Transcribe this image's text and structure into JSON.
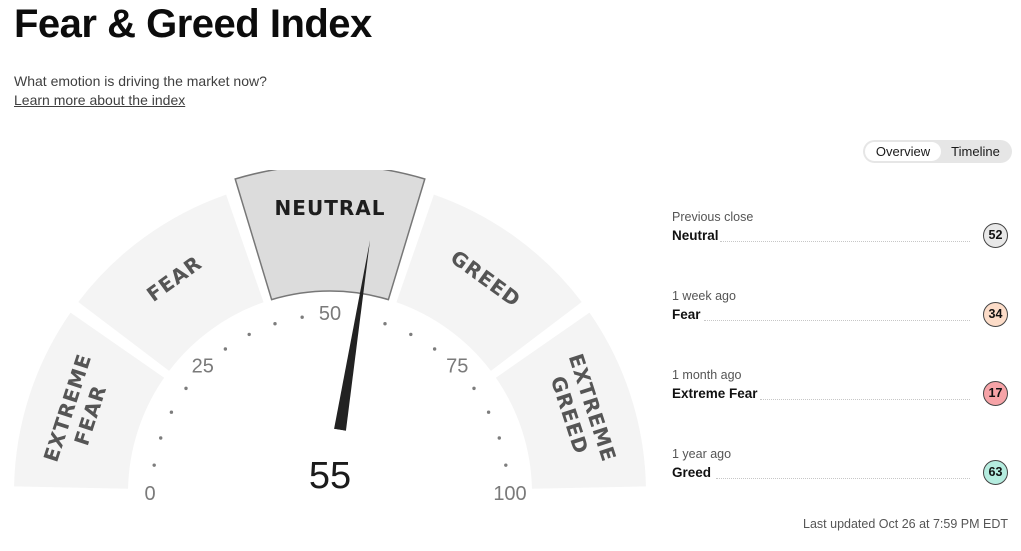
{
  "page": {
    "title": "Fear & Greed Index",
    "subtitle": "What emotion is driving the market now?",
    "learn_more": "Learn more about the index"
  },
  "view_toggle": {
    "options": [
      "Overview",
      "Timeline"
    ],
    "selected": "Overview"
  },
  "gauge": {
    "score": "55",
    "score_value": 55,
    "current_rating": "NEUTRAL",
    "segments": [
      {
        "line1": "EXTREME",
        "line2": "FEAR"
      },
      {
        "line1": "FEAR"
      },
      {
        "line1": "NEUTRAL"
      },
      {
        "line1": "GREED"
      },
      {
        "line1": "EXTREME",
        "line2": "GREED"
      }
    ],
    "scale_labels": [
      "0",
      "25",
      "50",
      "75",
      "100"
    ],
    "colors": {
      "segment": "#f4f4f4",
      "active_segment": "#dcdcdc",
      "needle": "#222222"
    }
  },
  "history": [
    {
      "when": "Previous close",
      "label": "Neutral",
      "value": "52",
      "color": "#e8e8e8"
    },
    {
      "when": "1 week ago",
      "label": "Fear",
      "value": "34",
      "color": "#fcdcc8"
    },
    {
      "when": "1 month ago",
      "label": "Extreme Fear",
      "value": "17",
      "color": "#f6a3a7"
    },
    {
      "when": "1 year ago",
      "label": "Greed",
      "value": "63",
      "color": "#b5ecdf"
    }
  ],
  "last_updated": "Last updated Oct 26 at 7:59 PM EDT"
}
